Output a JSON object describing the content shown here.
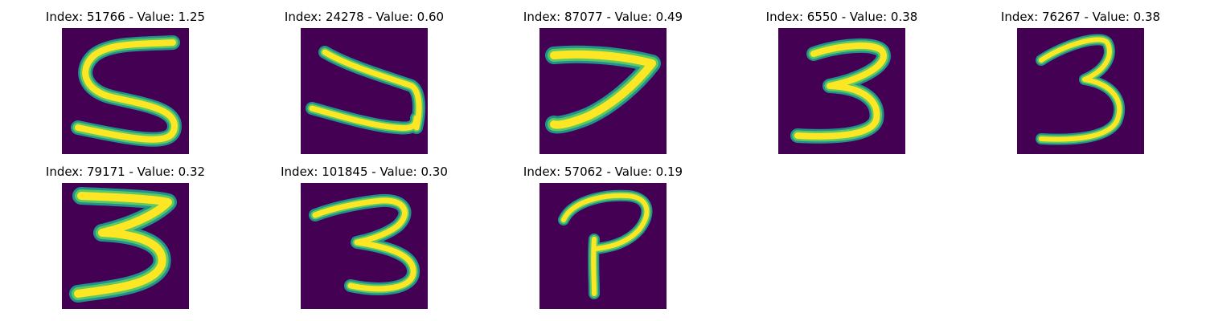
{
  "colors": {
    "background": "#440154",
    "edge": "#21918c",
    "mid": "#5ec962",
    "stroke": "#fde725"
  },
  "panels": [
    {
      "title": "Index: 51766 - Value: 1.25",
      "digit": "5"
    },
    {
      "title": "Index: 24278 - Value: 0.60",
      "digit": "U-shaped stroke"
    },
    {
      "title": "Index: 87077 - Value: 0.49",
      "digit": "7"
    },
    {
      "title": "Index: 6550 - Value: 0.38",
      "digit": "3"
    },
    {
      "title": "Index: 76267 - Value: 0.38",
      "digit": "3"
    },
    {
      "title": "Index: 79171 - Value: 0.32",
      "digit": "3"
    },
    {
      "title": "Index: 101845 - Value: 0.30",
      "digit": "3"
    },
    {
      "title": "Index: 57062 - Value: 0.19",
      "digit": "P-shaped stroke"
    }
  ]
}
